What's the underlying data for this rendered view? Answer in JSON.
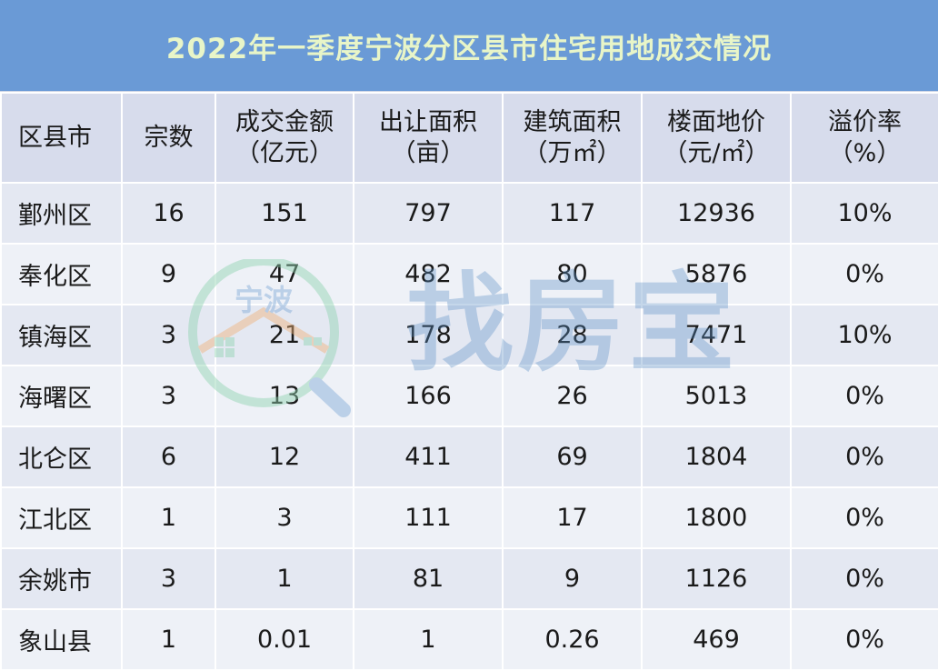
{
  "title": "2022年一季度宁波分区县市住宅用地成交情况",
  "columns": [
    {
      "line1": "区县市",
      "line2": ""
    },
    {
      "line1": "宗数",
      "line2": ""
    },
    {
      "line1": "成交金额",
      "line2": "（亿元）"
    },
    {
      "line1": "出让面积",
      "line2": "（亩）"
    },
    {
      "line1": "建筑面积",
      "line2": "（万㎡）"
    },
    {
      "line1": "楼面地价",
      "line2": "（元/㎡）"
    },
    {
      "line1": "溢价率",
      "line2": "（%）"
    }
  ],
  "rows": [
    [
      "鄞州区",
      "16",
      "151",
      "797",
      "117",
      "12936",
      "10%"
    ],
    [
      "奉化区",
      "9",
      "47",
      "482",
      "80",
      "5876",
      "0%"
    ],
    [
      "镇海区",
      "3",
      "21",
      "178",
      "28",
      "7471",
      "10%"
    ],
    [
      "海曙区",
      "3",
      "13",
      "166",
      "26",
      "5013",
      "0%"
    ],
    [
      "北仑区",
      "6",
      "12",
      "411",
      "69",
      "1804",
      "0%"
    ],
    [
      "江北区",
      "1",
      "3",
      "111",
      "17",
      "1800",
      "0%"
    ],
    [
      "余姚市",
      "3",
      "1",
      "81",
      "9",
      "1126",
      "0%"
    ],
    [
      "象山县",
      "1",
      "0.01",
      "1",
      "0.26",
      "469",
      "0%"
    ]
  ],
  "watermark": {
    "logo_text": "宁波",
    "brand_text": "找房宝",
    "icon": "magnifier-house-logo-icon"
  },
  "colors": {
    "title_bg": "#6a9ad6",
    "title_text": "#e8f5c8",
    "header_bg": "#d7dcec",
    "row_odd_bg": "#e4e8f2",
    "row_even_bg": "#eef1f7"
  }
}
